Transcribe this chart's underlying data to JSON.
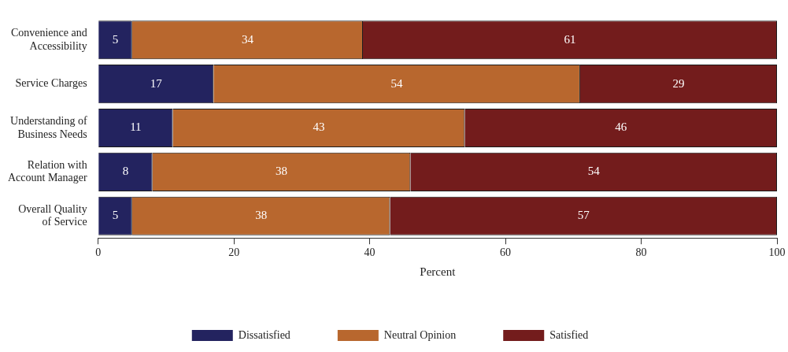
{
  "chart_data": {
    "type": "bar",
    "orientation": "horizontal",
    "stacked": true,
    "xlabel": "Percent",
    "categories": [
      "Convenience and Accessibility",
      "Service Charges",
      "Understanding of Business Needs",
      "Relation with Account Manager",
      "Overall Quality of Service"
    ],
    "series": [
      {
        "name": "Dissatisfied",
        "color": "#23235f",
        "values": [
          5,
          17,
          11,
          8,
          5
        ]
      },
      {
        "name": "Neutral Opinion",
        "color": "#b8672e",
        "values": [
          34,
          54,
          43,
          38,
          38
        ]
      },
      {
        "name": "Satisfied",
        "color": "#731c1c",
        "values": [
          61,
          29,
          46,
          54,
          57
        ]
      }
    ],
    "xlim": [
      0,
      100
    ],
    "xticks": [
      0,
      20,
      40,
      60,
      80,
      100
    ],
    "data_labels": true,
    "grid": false,
    "legend": "bottom"
  }
}
